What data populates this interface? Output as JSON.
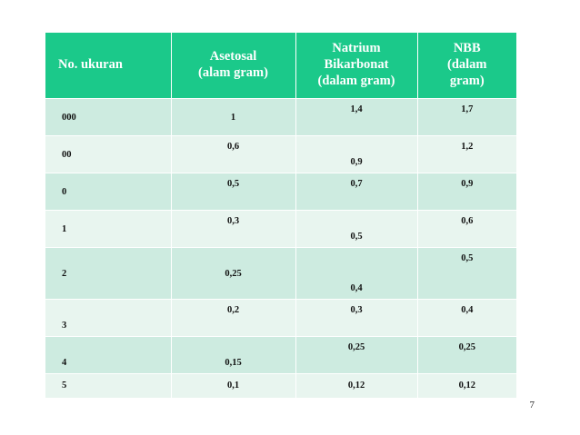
{
  "table": {
    "headers": [
      [
        "No. ukuran"
      ],
      [
        "Asetosal",
        "(alam gram)"
      ],
      [
        "Natrium",
        "Bikarbonat",
        "(dalam gram)"
      ],
      [
        "NBB",
        "(dalam",
        "gram)"
      ]
    ],
    "rows": [
      [
        "000",
        "1",
        "1,4",
        "1,7"
      ],
      [
        "00",
        "0,6",
        "0,9",
        "1,2"
      ],
      [
        "0",
        "0,5",
        "0,7",
        "0,9"
      ],
      [
        "1",
        "0,3",
        "0,5",
        "0,6"
      ],
      [
        "2",
        "0,25",
        "0,4",
        "0,5"
      ],
      [
        "3",
        "0,2",
        "0,3",
        "0,4"
      ],
      [
        "4",
        "0,15",
        "0,25",
        "0,25"
      ],
      [
        "5",
        "0,1",
        "0,12",
        "0,12"
      ]
    ]
  },
  "page_number": "7",
  "colors": {
    "header_bg": "#1bc98a",
    "row_odd": "#cdebe0",
    "row_even": "#e8f5ef"
  }
}
